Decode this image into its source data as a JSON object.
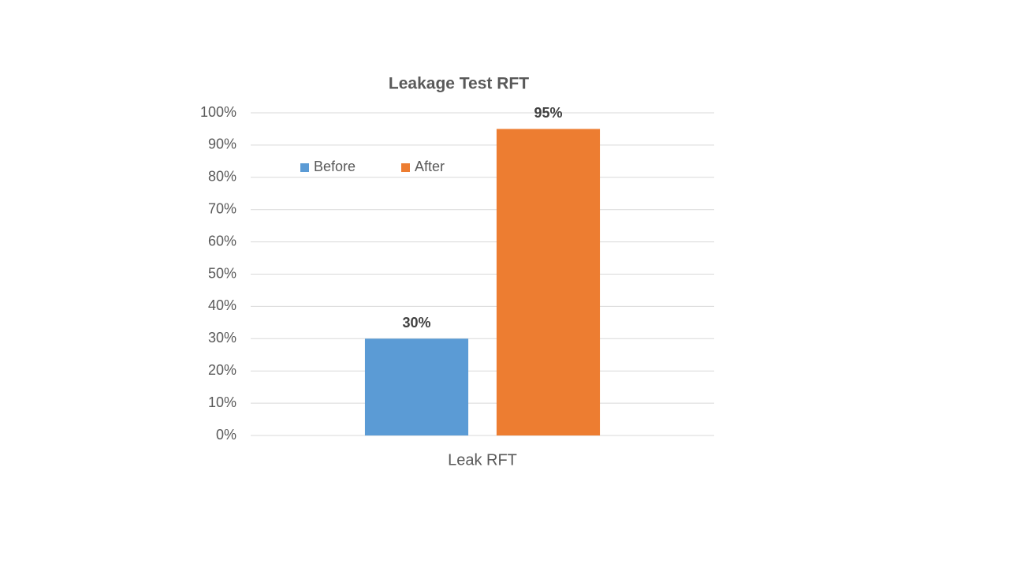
{
  "chart_data": {
    "type": "bar",
    "title": "Leakage Test RFT",
    "categories": [
      "Leak RFT"
    ],
    "series": [
      {
        "name": "Before",
        "color": "#5b9bd5",
        "values": [
          30
        ],
        "value_labels": [
          "30%"
        ]
      },
      {
        "name": "After",
        "color": "#ed7d31",
        "values": [
          95
        ],
        "value_labels": [
          "95%"
        ]
      }
    ],
    "ylim": [
      0,
      100
    ],
    "yticks": [
      {
        "value": 0,
        "label": "0%"
      },
      {
        "value": 10,
        "label": "10%"
      },
      {
        "value": 20,
        "label": "20%"
      },
      {
        "value": 30,
        "label": "30%"
      },
      {
        "value": 40,
        "label": "40%"
      },
      {
        "value": 50,
        "label": "50%"
      },
      {
        "value": 60,
        "label": "60%"
      },
      {
        "value": 70,
        "label": "70%"
      },
      {
        "value": 80,
        "label": "80%"
      },
      {
        "value": 90,
        "label": "90%"
      },
      {
        "value": 100,
        "label": "100%"
      }
    ],
    "grid": true,
    "legend": "upper left"
  }
}
